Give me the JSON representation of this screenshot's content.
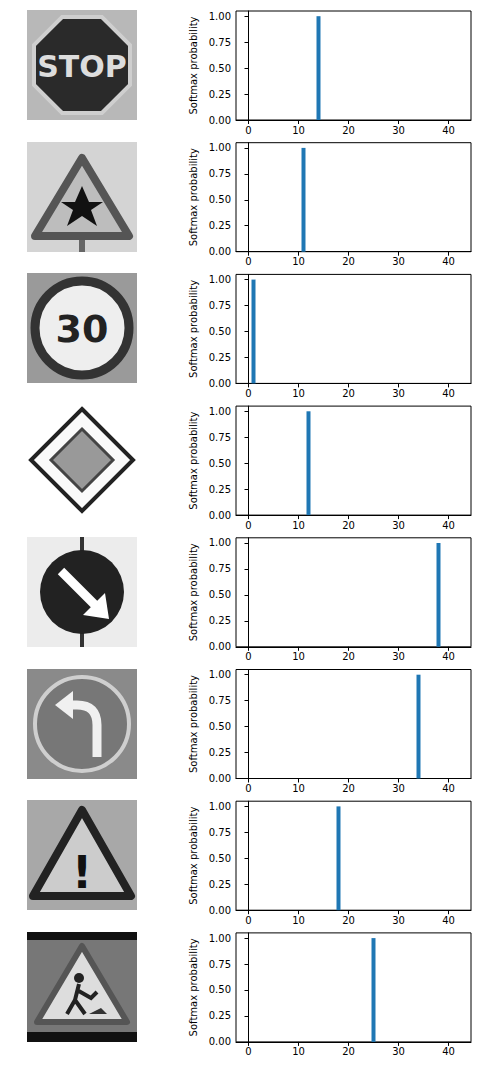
{
  "chart_data": [
    {
      "type": "bar",
      "y_label": "Softmax probability",
      "color": "#1f77b4",
      "grid": false,
      "x": [
        0,
        1,
        2,
        3,
        4,
        5,
        6,
        7,
        8,
        9,
        10,
        11,
        12,
        13,
        14,
        15,
        16,
        17,
        18,
        19,
        20,
        21,
        22,
        23,
        24,
        25,
        26,
        27,
        28,
        29,
        30,
        31,
        32,
        33,
        34,
        35,
        36,
        37,
        38,
        39,
        40,
        41,
        42
      ],
      "values": [
        0,
        0,
        0,
        0,
        0,
        0,
        0,
        0,
        0,
        0,
        0,
        0,
        0,
        0,
        1,
        0,
        0,
        0,
        0,
        0,
        0,
        0,
        0,
        0,
        0,
        0,
        0,
        0,
        0,
        0,
        0,
        0,
        0,
        0,
        0,
        0,
        0,
        0,
        0,
        0,
        0,
        0,
        0
      ],
      "xlim": [
        -2.5,
        44.5
      ],
      "xticks": [
        0,
        10,
        20,
        30,
        40
      ],
      "ylim": [
        0,
        1.05
      ],
      "yticks": [
        {
          "value": 0,
          "label": "0.00"
        },
        {
          "value": 0.25,
          "label": "0.25"
        },
        {
          "value": 0.5,
          "label": "0.50"
        },
        {
          "value": 0.75,
          "label": "0.75"
        },
        {
          "value": 1,
          "label": "1.00"
        }
      ]
    },
    {
      "type": "bar",
      "y_label": "Softmax probability",
      "color": "#1f77b4",
      "grid": false,
      "x": [
        0,
        1,
        2,
        3,
        4,
        5,
        6,
        7,
        8,
        9,
        10,
        11,
        12,
        13,
        14,
        15,
        16,
        17,
        18,
        19,
        20,
        21,
        22,
        23,
        24,
        25,
        26,
        27,
        28,
        29,
        30,
        31,
        32,
        33,
        34,
        35,
        36,
        37,
        38,
        39,
        40,
        41,
        42
      ],
      "values": [
        0,
        0,
        0,
        0,
        0,
        0,
        0,
        0,
        0,
        0,
        0,
        1,
        0,
        0,
        0,
        0,
        0,
        0,
        0,
        0,
        0,
        0,
        0,
        0,
        0,
        0,
        0,
        0,
        0,
        0,
        0,
        0,
        0,
        0,
        0,
        0,
        0,
        0,
        0,
        0,
        0,
        0,
        0
      ],
      "xlim": [
        -2.5,
        44.5
      ],
      "xticks": [
        0,
        10,
        20,
        30,
        40
      ],
      "ylim": [
        0,
        1.05
      ],
      "yticks": [
        {
          "value": 0,
          "label": "0.00"
        },
        {
          "value": 0.25,
          "label": "0.25"
        },
        {
          "value": 0.5,
          "label": "0.50"
        },
        {
          "value": 0.75,
          "label": "0.75"
        },
        {
          "value": 1,
          "label": "1.00"
        }
      ]
    },
    {
      "type": "bar",
      "y_label": "Softmax probability",
      "color": "#1f77b4",
      "grid": false,
      "x": [
        0,
        1,
        2,
        3,
        4,
        5,
        6,
        7,
        8,
        9,
        10,
        11,
        12,
        13,
        14,
        15,
        16,
        17,
        18,
        19,
        20,
        21,
        22,
        23,
        24,
        25,
        26,
        27,
        28,
        29,
        30,
        31,
        32,
        33,
        34,
        35,
        36,
        37,
        38,
        39,
        40,
        41,
        42
      ],
      "values": [
        0,
        1,
        0,
        0,
        0,
        0,
        0,
        0,
        0,
        0,
        0,
        0,
        0,
        0,
        0,
        0,
        0,
        0,
        0,
        0,
        0,
        0,
        0,
        0,
        0,
        0,
        0,
        0,
        0,
        0,
        0,
        0,
        0,
        0,
        0,
        0,
        0,
        0,
        0,
        0,
        0,
        0,
        0
      ],
      "xlim": [
        -2.5,
        44.5
      ],
      "xticks": [
        0,
        10,
        20,
        30,
        40
      ],
      "ylim": [
        0,
        1.05
      ],
      "yticks": [
        {
          "value": 0,
          "label": "0.00"
        },
        {
          "value": 0.25,
          "label": "0.25"
        },
        {
          "value": 0.5,
          "label": "0.50"
        },
        {
          "value": 0.75,
          "label": "0.75"
        },
        {
          "value": 1,
          "label": "1.00"
        }
      ]
    },
    {
      "type": "bar",
      "y_label": "Softmax probability",
      "color": "#1f77b4",
      "grid": false,
      "x": [
        0,
        1,
        2,
        3,
        4,
        5,
        6,
        7,
        8,
        9,
        10,
        11,
        12,
        13,
        14,
        15,
        16,
        17,
        18,
        19,
        20,
        21,
        22,
        23,
        24,
        25,
        26,
        27,
        28,
        29,
        30,
        31,
        32,
        33,
        34,
        35,
        36,
        37,
        38,
        39,
        40,
        41,
        42
      ],
      "values": [
        0,
        0,
        0,
        0,
        0,
        0,
        0,
        0,
        0,
        0,
        0,
        0,
        1,
        0,
        0,
        0,
        0,
        0,
        0,
        0,
        0,
        0,
        0,
        0,
        0,
        0,
        0,
        0,
        0,
        0,
        0,
        0,
        0,
        0,
        0,
        0,
        0,
        0,
        0,
        0,
        0,
        0,
        0
      ],
      "xlim": [
        -2.5,
        44.5
      ],
      "xticks": [
        0,
        10,
        20,
        30,
        40
      ],
      "ylim": [
        0,
        1.05
      ],
      "yticks": [
        {
          "value": 0,
          "label": "0.00"
        },
        {
          "value": 0.25,
          "label": "0.25"
        },
        {
          "value": 0.5,
          "label": "0.50"
        },
        {
          "value": 0.75,
          "label": "0.75"
        },
        {
          "value": 1,
          "label": "1.00"
        }
      ]
    },
    {
      "type": "bar",
      "y_label": "Softmax probability",
      "color": "#1f77b4",
      "grid": false,
      "x": [
        0,
        1,
        2,
        3,
        4,
        5,
        6,
        7,
        8,
        9,
        10,
        11,
        12,
        13,
        14,
        15,
        16,
        17,
        18,
        19,
        20,
        21,
        22,
        23,
        24,
        25,
        26,
        27,
        28,
        29,
        30,
        31,
        32,
        33,
        34,
        35,
        36,
        37,
        38,
        39,
        40,
        41,
        42
      ],
      "values": [
        0,
        0,
        0,
        0,
        0,
        0,
        0,
        0,
        0,
        0,
        0,
        0,
        0,
        0,
        0,
        0,
        0,
        0,
        0,
        0,
        0,
        0,
        0,
        0,
        0,
        0,
        0,
        0,
        0,
        0,
        0,
        0,
        0,
        0,
        0,
        0,
        0,
        0,
        1,
        0,
        0,
        0,
        0
      ],
      "xlim": [
        -2.5,
        44.5
      ],
      "xticks": [
        0,
        10,
        20,
        30,
        40
      ],
      "ylim": [
        0,
        1.05
      ],
      "yticks": [
        {
          "value": 0,
          "label": "0.00"
        },
        {
          "value": 0.25,
          "label": "0.25"
        },
        {
          "value": 0.5,
          "label": "0.50"
        },
        {
          "value": 0.75,
          "label": "0.75"
        },
        {
          "value": 1,
          "label": "1.00"
        }
      ]
    },
    {
      "type": "bar",
      "y_label": "Softmax probability",
      "color": "#1f77b4",
      "grid": false,
      "x": [
        0,
        1,
        2,
        3,
        4,
        5,
        6,
        7,
        8,
        9,
        10,
        11,
        12,
        13,
        14,
        15,
        16,
        17,
        18,
        19,
        20,
        21,
        22,
        23,
        24,
        25,
        26,
        27,
        28,
        29,
        30,
        31,
        32,
        33,
        34,
        35,
        36,
        37,
        38,
        39,
        40,
        41,
        42
      ],
      "values": [
        0,
        0,
        0,
        0,
        0,
        0,
        0,
        0,
        0,
        0,
        0,
        0,
        0,
        0,
        0,
        0,
        0,
        0,
        0,
        0,
        0,
        0,
        0,
        0,
        0,
        0,
        0,
        0,
        0,
        0,
        0,
        0,
        0,
        0,
        1,
        0,
        0,
        0,
        0,
        0,
        0,
        0,
        0
      ],
      "xlim": [
        -2.5,
        44.5
      ],
      "xticks": [
        0,
        10,
        20,
        30,
        40
      ],
      "ylim": [
        0,
        1.05
      ],
      "yticks": [
        {
          "value": 0,
          "label": "0.00"
        },
        {
          "value": 0.25,
          "label": "0.25"
        },
        {
          "value": 0.5,
          "label": "0.50"
        },
        {
          "value": 0.75,
          "label": "0.75"
        },
        {
          "value": 1,
          "label": "1.00"
        }
      ]
    },
    {
      "type": "bar",
      "y_label": "Softmax probability",
      "color": "#1f77b4",
      "grid": false,
      "x": [
        0,
        1,
        2,
        3,
        4,
        5,
        6,
        7,
        8,
        9,
        10,
        11,
        12,
        13,
        14,
        15,
        16,
        17,
        18,
        19,
        20,
        21,
        22,
        23,
        24,
        25,
        26,
        27,
        28,
        29,
        30,
        31,
        32,
        33,
        34,
        35,
        36,
        37,
        38,
        39,
        40,
        41,
        42
      ],
      "values": [
        0,
        0,
        0,
        0,
        0,
        0,
        0,
        0,
        0,
        0,
        0,
        0,
        0,
        0,
        0,
        0,
        0,
        0,
        1,
        0,
        0,
        0,
        0,
        0,
        0,
        0,
        0,
        0,
        0,
        0,
        0,
        0,
        0,
        0,
        0,
        0,
        0,
        0,
        0,
        0,
        0,
        0,
        0
      ],
      "xlim": [
        -2.5,
        44.5
      ],
      "xticks": [
        0,
        10,
        20,
        30,
        40
      ],
      "ylim": [
        0,
        1.05
      ],
      "yticks": [
        {
          "value": 0,
          "label": "0.00"
        },
        {
          "value": 0.25,
          "label": "0.25"
        },
        {
          "value": 0.5,
          "label": "0.50"
        },
        {
          "value": 0.75,
          "label": "0.75"
        },
        {
          "value": 1,
          "label": "1.00"
        }
      ]
    },
    {
      "type": "bar",
      "y_label": "Softmax probability",
      "color": "#1f77b4",
      "grid": false,
      "x": [
        0,
        1,
        2,
        3,
        4,
        5,
        6,
        7,
        8,
        9,
        10,
        11,
        12,
        13,
        14,
        15,
        16,
        17,
        18,
        19,
        20,
        21,
        22,
        23,
        24,
        25,
        26,
        27,
        28,
        29,
        30,
        31,
        32,
        33,
        34,
        35,
        36,
        37,
        38,
        39,
        40,
        41,
        42
      ],
      "values": [
        0,
        0,
        0,
        0,
        0,
        0,
        0,
        0,
        0,
        0,
        0,
        0,
        0,
        0,
        0,
        0,
        0,
        0,
        0,
        0,
        0,
        0,
        0,
        0,
        0,
        1,
        0,
        0,
        0,
        0,
        0,
        0,
        0,
        0,
        0,
        0,
        0,
        0,
        0,
        0,
        0,
        0,
        0
      ],
      "xlim": [
        -2.5,
        44.5
      ],
      "xticks": [
        0,
        10,
        20,
        30,
        40
      ],
      "ylim": [
        0,
        1.05
      ],
      "yticks": [
        {
          "value": 0,
          "label": "0.00"
        },
        {
          "value": 0.25,
          "label": "0.25"
        },
        {
          "value": 0.5,
          "label": "0.50"
        },
        {
          "value": 0.75,
          "label": "0.75"
        },
        {
          "value": 1,
          "label": "1.00"
        }
      ]
    }
  ],
  "signs": [
    {
      "kind": "stop",
      "text": "STOP"
    },
    {
      "kind": "right_of_way"
    },
    {
      "kind": "speed_limit",
      "text": "30"
    },
    {
      "kind": "priority_road"
    },
    {
      "kind": "keep_right"
    },
    {
      "kind": "turn_left_ahead"
    },
    {
      "kind": "general_caution",
      "text": "!"
    },
    {
      "kind": "road_work"
    }
  ]
}
